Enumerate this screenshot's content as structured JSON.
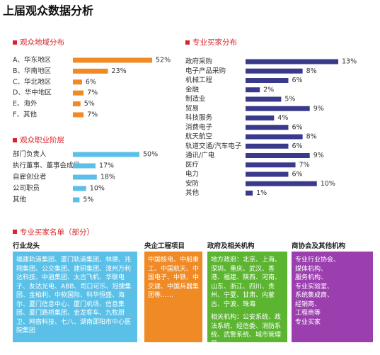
{
  "title": "上届观众数据分析",
  "chart_data": [
    {
      "type": "bar",
      "title": "观众地域分布",
      "color": "#f08a24",
      "categories": [
        "A、华东地区",
        "B、华南地区",
        "C、华北地区",
        "D、华中地区",
        "E、海外",
        "F、其他"
      ],
      "values": [
        52,
        23,
        6,
        7,
        5,
        7
      ],
      "value_labels": [
        "52%",
        "23%",
        "6%",
        "7%",
        "5%",
        "7%"
      ]
    },
    {
      "type": "bar",
      "title": "观众职业阶层",
      "color": "#5bc0e8",
      "categories": [
        "部门负责人",
        "执行董事、董事会成员",
        "自雇创业者",
        "公司职员",
        "其他"
      ],
      "values": [
        50,
        17,
        18,
        10,
        5
      ],
      "value_labels": [
        "50%",
        "17%",
        "18%",
        "10%",
        "5%"
      ]
    },
    {
      "type": "bar",
      "title": "专业买家分布",
      "color": "#3a3a8c",
      "categories": [
        "政府采购",
        "电子产品采购",
        "机械工程",
        "金融",
        "制造业",
        "贸易",
        "科技服务",
        "消费电子",
        "航天航空",
        "轨道交通/汽车电子",
        "通讯/广电",
        "医疗",
        "电力",
        "安防",
        "其他"
      ],
      "values": [
        13,
        8,
        6,
        2,
        5,
        9,
        4,
        6,
        8,
        6,
        9,
        7,
        6,
        10,
        1
      ],
      "value_labels": [
        "13%",
        "8%",
        "6%",
        "2%",
        "5%",
        "9%",
        "4%",
        "6%",
        "8%",
        "6%",
        "9%",
        "7%",
        "6%",
        "10%",
        "1%"
      ]
    }
  ],
  "buyers": {
    "title": "专业买家名单（部分）",
    "columns": [
      {
        "heading": "行业龙头",
        "paragraphs": [
          "福建轨道集团、厦门轨道集团、林德、兆翔集团、公交集团、建研集团、漳州万利达科技、中逍集团、太古飞机、华联电子、友达光电、ABB、司口可乐、冠捷集团、金柏利、中软国际、科华恒盛、海尔、厦门信息中心、厦门机场、信息集团、厦门路桥集团、金龙客车、九牧厨卫、网宿科技、七八、湖南邵阳市中心医院集团"
        ]
      },
      {
        "heading": "央企工程项目",
        "paragraphs": [
          "中国核电、中船重工、中国航天、中国电子、中铁、中交建、中国兵器集团等……"
        ]
      },
      {
        "heading": "政府及相关机构",
        "paragraphs": [
          "地方政府：北京、上海、深圳、重庆、武汉、香港、福建、陕西、河南、山东、浙江、四川、贵州、宁夏、甘肃、内蒙古、宁波、珠海",
          "相关机构：公安系统、政法系统、经信委、消防系统、武警系统、城市管理局"
        ]
      },
      {
        "heading": "商协会及其他机构",
        "paragraphs": [
          "专业行业协会、",
          "媒体机构、",
          "服务机构、",
          "专业实验室、",
          "系统集成商、",
          "经销商、",
          "工程商等",
          "专业买家"
        ]
      }
    ]
  }
}
